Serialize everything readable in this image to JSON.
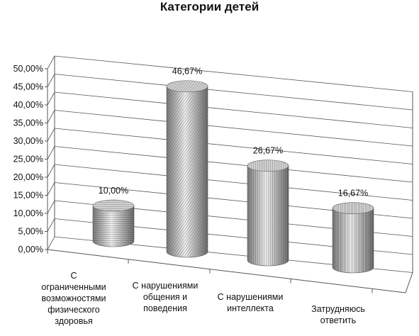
{
  "chart_data": {
    "type": "bar",
    "title": "Категории детей",
    "categories": [
      "С ограниченными возможностями физического здоровья",
      "С нарушениями общения и поведения",
      "С нарушениями интеллекта",
      "Затрудняюсь ответить"
    ],
    "category_lines": [
      [
        "С",
        "ограниченными",
        "возможностями",
        "физического",
        "здоровья"
      ],
      [
        "С нарушениями",
        "общения и",
        "поведения"
      ],
      [
        "С нарушениями",
        "интеллекта"
      ],
      [
        "Затрудняюсь",
        "ответить"
      ]
    ],
    "values": [
      10.0,
      46.67,
      26.67,
      16.67
    ],
    "data_labels": [
      "10,00%",
      "46,67%",
      "26,67%",
      "16,67%"
    ],
    "xlabel": "",
    "ylabel": "",
    "ylim": [
      0,
      50
    ],
    "yticks": [
      "0,00%",
      "5,00%",
      "10,00%",
      "15,00%",
      "20,00%",
      "25,00%",
      "30,00%",
      "35,00%",
      "40,00%",
      "45,00%",
      "50,00%"
    ],
    "grid": true,
    "legend": "none",
    "shape": "cylinder",
    "style": "3d",
    "colors": {
      "axis": "#555555",
      "grid": "#555555",
      "bar_light": "#d8d8d8",
      "bar_dark": "#6a6a6a"
    }
  }
}
